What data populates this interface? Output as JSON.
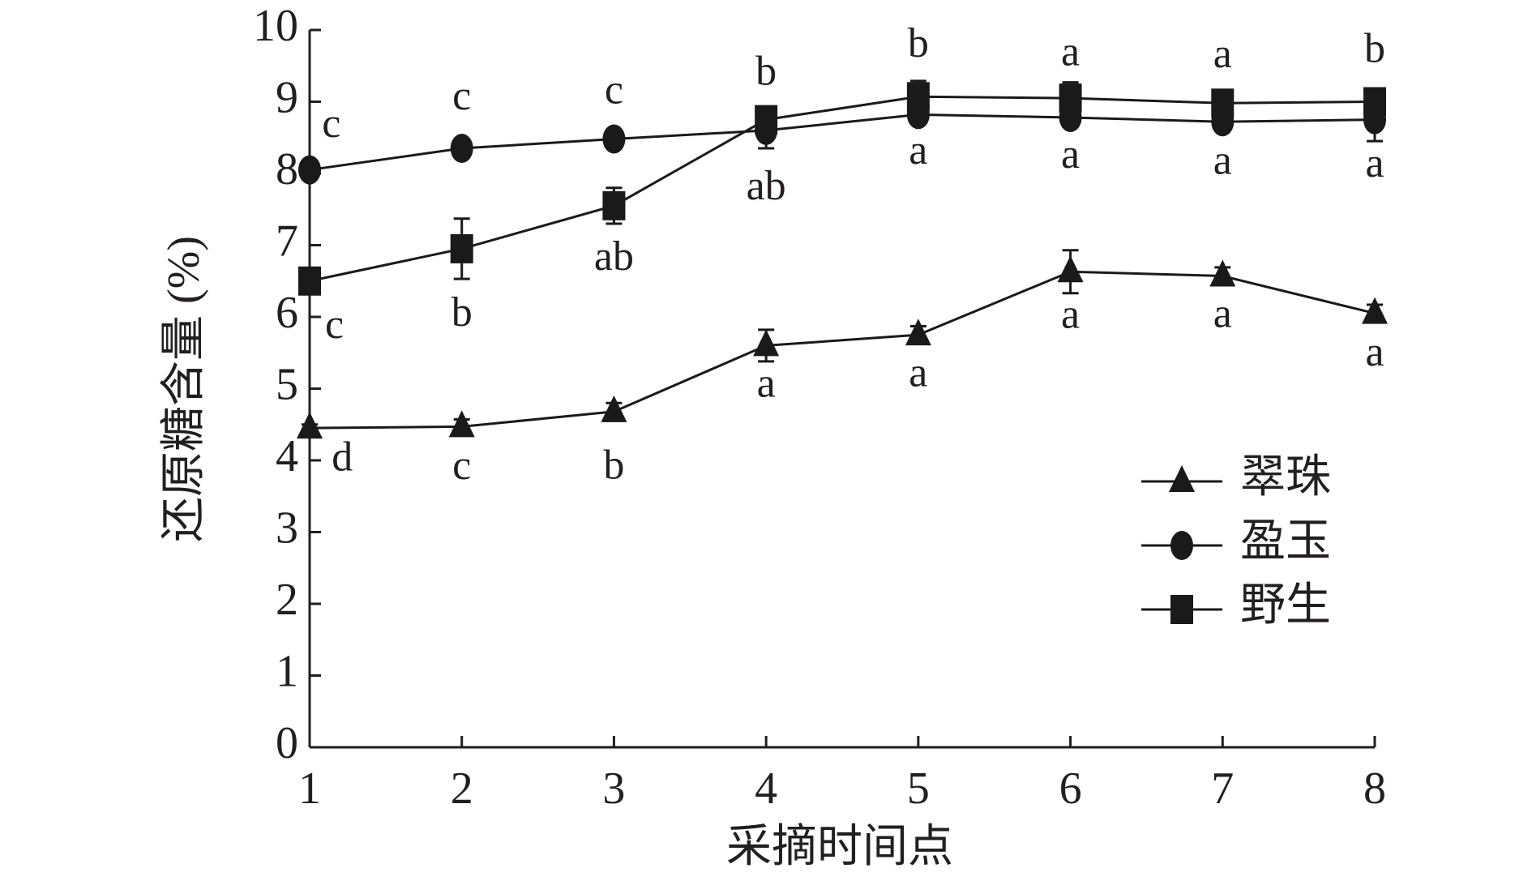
{
  "chart_data": {
    "type": "line",
    "x_label": "采摘时间点",
    "y_label": "还原糖含量 (%)",
    "x": [
      1,
      2,
      3,
      4,
      5,
      6,
      7,
      8
    ],
    "xlim": [
      1,
      8
    ],
    "xticks": [
      1,
      2,
      3,
      4,
      5,
      6,
      7,
      8
    ],
    "ylim": [
      0,
      10
    ],
    "yticks": [
      0,
      1,
      2,
      3,
      4,
      5,
      6,
      7,
      8,
      9,
      10
    ],
    "legend_position": "lower right",
    "series": [
      {
        "name": "翠珠",
        "marker": "triangle",
        "color": "#1a1a1a",
        "values": [
          4.45,
          4.47,
          4.68,
          5.6,
          5.75,
          6.63,
          6.57,
          6.05
        ],
        "errors": [
          0.05,
          0.1,
          0.12,
          0.22,
          0.12,
          0.3,
          0.12,
          0.12
        ],
        "letters": [
          "d",
          "c",
          "b",
          "a",
          "a",
          "a",
          "a",
          "a"
        ]
      },
      {
        "name": "盈玉",
        "marker": "circle",
        "color": "#1a1a1a",
        "values": [
          8.05,
          8.35,
          8.48,
          8.6,
          8.82,
          8.78,
          8.72,
          8.75
        ],
        "errors": [
          0.05,
          0.08,
          0.08,
          0.25,
          0.08,
          0.1,
          0.1,
          0.3
        ],
        "letters": [
          "c",
          "c",
          "c",
          "ab",
          "a",
          "a",
          "a",
          "a"
        ]
      },
      {
        "name": "野生",
        "marker": "square",
        "color": "#1a1a1a",
        "values": [
          6.5,
          6.95,
          7.55,
          8.75,
          9.07,
          9.05,
          8.98,
          9.0
        ],
        "errors": [
          0.15,
          0.42,
          0.25,
          0.1,
          0.22,
          0.22,
          0.12,
          0.15
        ],
        "letters": [
          "c",
          "b",
          "ab",
          "b",
          "b",
          "a",
          "a",
          "b"
        ]
      }
    ]
  }
}
